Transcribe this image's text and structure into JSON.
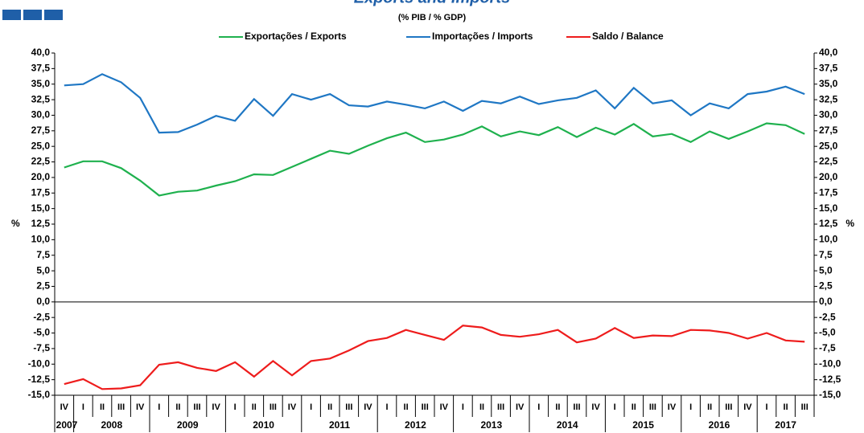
{
  "chart_data": {
    "type": "line",
    "title": "Exports and Imports",
    "subtitle": "(% PIB / % GDP)",
    "ylabel": "%",
    "categories": [
      "IV",
      "I",
      "II",
      "III",
      "IV",
      "I",
      "II",
      "III",
      "IV",
      "I",
      "II",
      "III",
      "IV",
      "I",
      "II",
      "III",
      "IV",
      "I",
      "II",
      "III",
      "IV",
      "I",
      "II",
      "III",
      "IV",
      "I",
      "II",
      "III",
      "IV",
      "I",
      "II",
      "III",
      "IV",
      "I",
      "II",
      "III",
      "IV",
      "I",
      "II",
      "III"
    ],
    "years": [
      "2007",
      "2008",
      "2009",
      "2010",
      "2011",
      "2012",
      "2013",
      "2014",
      "2015",
      "2016",
      "2017"
    ],
    "series": [
      {
        "name": "Exportações / Exports",
        "color": "#1fb14e",
        "values": [
          21.6,
          22.6,
          22.6,
          21.5,
          19.5,
          17.1,
          17.7,
          17.9,
          18.7,
          19.4,
          20.5,
          20.4,
          21.7,
          23.0,
          24.3,
          23.8,
          25.1,
          26.3,
          27.2,
          25.7,
          26.1,
          26.9,
          28.2,
          26.6,
          27.4,
          26.8,
          28.1,
          26.5,
          28.0,
          26.9,
          28.6,
          26.6,
          27.0,
          25.7,
          27.4,
          26.2,
          27.4,
          28.7,
          28.4,
          27.0
        ]
      },
      {
        "name": "Importações / Imports",
        "color": "#1f77c4",
        "values": [
          34.8,
          35.0,
          36.6,
          35.3,
          32.8,
          27.2,
          27.3,
          28.5,
          29.9,
          29.1,
          32.6,
          29.9,
          33.4,
          32.5,
          33.4,
          31.6,
          31.4,
          32.2,
          31.7,
          31.1,
          32.2,
          30.7,
          32.3,
          31.9,
          33.0,
          31.8,
          32.4,
          32.8,
          34.0,
          31.1,
          34.4,
          31.9,
          32.4,
          30.0,
          31.9,
          31.1,
          33.4,
          33.8,
          34.6,
          33.4
        ]
      },
      {
        "name": "Saldo / Balance",
        "color": "#ee1c1c",
        "values": [
          -13.2,
          -12.4,
          -14.0,
          -13.9,
          -13.4,
          -10.1,
          -9.7,
          -10.6,
          -11.1,
          -9.7,
          -12.0,
          -9.5,
          -11.8,
          -9.5,
          -9.1,
          -7.8,
          -6.3,
          -5.8,
          -4.5,
          -5.3,
          -6.1,
          -3.8,
          -4.1,
          -5.3,
          -5.6,
          -5.2,
          -4.5,
          -6.5,
          -5.9,
          -4.2,
          -5.8,
          -5.4,
          -5.5,
          -4.5,
          -4.6,
          -5.0,
          -5.9,
          -5.0,
          -6.2,
          -6.4
        ]
      }
    ],
    "ylim": [
      -15,
      40
    ],
    "yticks": [
      {
        "value": 40,
        "label": "40,0"
      },
      {
        "value": 37.5,
        "label": "37,5"
      },
      {
        "value": 35,
        "label": "35,0"
      },
      {
        "value": 32.5,
        "label": "32,5"
      },
      {
        "value": 30,
        "label": "30,0"
      },
      {
        "value": 27.5,
        "label": "27,5"
      },
      {
        "value": 25,
        "label": "25,0"
      },
      {
        "value": 22.5,
        "label": "22,5"
      },
      {
        "value": 20,
        "label": "20,0"
      },
      {
        "value": 17.5,
        "label": "17,5"
      },
      {
        "value": 15,
        "label": "15,0"
      },
      {
        "value": 12.5,
        "label": "12,5"
      },
      {
        "value": 10,
        "label": "10,0"
      },
      {
        "value": 7.5,
        "label": "7,5"
      },
      {
        "value": 5,
        "label": "5,0"
      },
      {
        "value": 2.5,
        "label": "2,5"
      },
      {
        "value": 0,
        "label": "0,0"
      },
      {
        "value": -2.5,
        "label": "-2,5"
      },
      {
        "value": -5,
        "label": "-5,0"
      },
      {
        "value": -7.5,
        "label": "-7,5"
      },
      {
        "value": -10,
        "label": "-10,0"
      },
      {
        "value": -12.5,
        "label": "-12,5"
      },
      {
        "value": -15,
        "label": "-15,0"
      }
    ],
    "legend": "top"
  }
}
